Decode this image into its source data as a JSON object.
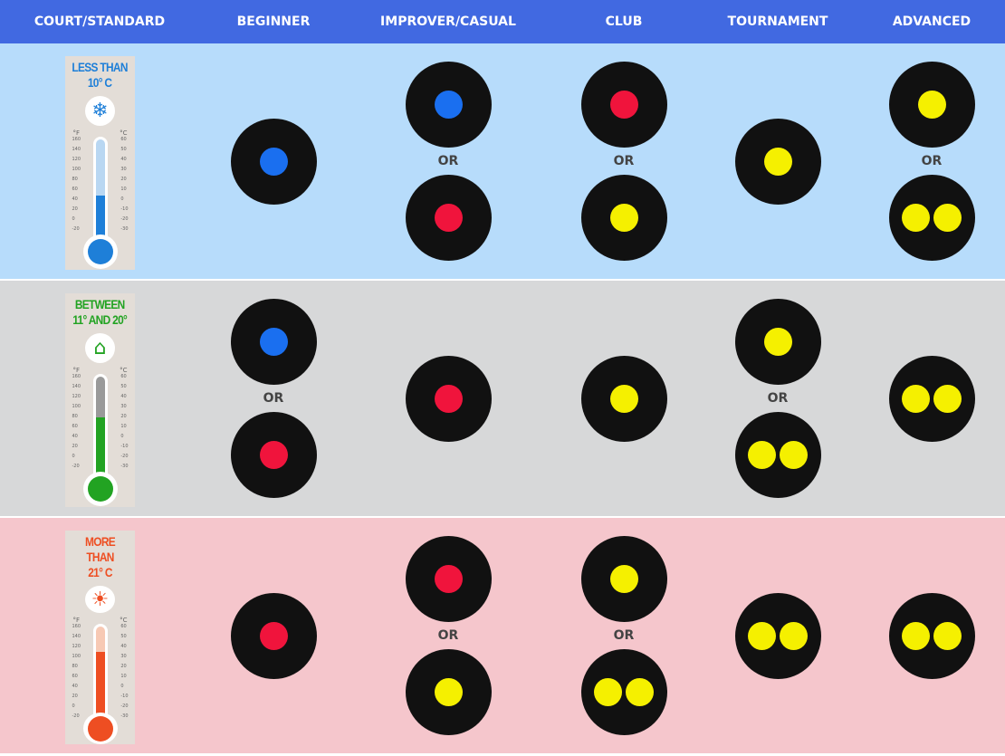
{
  "header": [
    "COURT/STANDARD",
    "BEGINNER",
    "IMPROVER/CASUAL",
    "CLUB",
    "TOURNAMENT",
    "ADVANCED"
  ],
  "or_label": "OR",
  "colors": {
    "blue": "#1a6ff0",
    "red": "#f0143c",
    "yellow": "#f5f000",
    "header": "#4169e1"
  },
  "scale": {
    "f_unit": "°F",
    "c_unit": "°C",
    "f": [
      "160",
      "140",
      "120",
      "100",
      "80",
      "60",
      "40",
      "20",
      "0",
      "-20"
    ],
    "c": [
      "60",
      "50",
      "40",
      "30",
      "20",
      "10",
      "0",
      "-10",
      "-20",
      "-30"
    ]
  },
  "rows": [
    {
      "label_line1": "LESS THAN",
      "label_line2": "10° C",
      "icon": "snowflake-icon",
      "icon_glyph": "❄",
      "bg": "#b7dcfb",
      "accent": "#1e7fd8",
      "tube": "#b9d7f2",
      "fill_level": 0.45,
      "cells": [
        [
          [
            "blue"
          ]
        ],
        [
          [
            "blue"
          ],
          [
            "red"
          ]
        ],
        [
          [
            "red"
          ],
          [
            "yellow"
          ]
        ],
        [
          [
            "yellow"
          ]
        ],
        [
          [
            "yellow"
          ],
          [
            "yellow",
            "yellow"
          ]
        ]
      ]
    },
    {
      "label_line1": "BETWEEN",
      "label_line2": "11° AND 20°",
      "icon": "house-icon",
      "icon_glyph": "⌂",
      "bg": "#d7d8d9",
      "accent": "#22a322",
      "tube": "#9a9a9a",
      "fill_level": 0.6,
      "cells": [
        [
          [
            "blue"
          ],
          [
            "red"
          ]
        ],
        [
          [
            "red"
          ]
        ],
        [
          [
            "yellow"
          ]
        ],
        [
          [
            "yellow"
          ],
          [
            "yellow",
            "yellow"
          ]
        ],
        [
          [
            "yellow",
            "yellow"
          ]
        ]
      ]
    },
    {
      "label_line1": "MORE THAN",
      "label_line2": "21° C",
      "icon": "sun-icon",
      "icon_glyph": "☀",
      "bg": "#f5c6cc",
      "accent": "#ee4e22",
      "tube": "#f7c9b4",
      "fill_level": 0.75,
      "cells": [
        [
          [
            "red"
          ]
        ],
        [
          [
            "red"
          ],
          [
            "yellow"
          ]
        ],
        [
          [
            "yellow"
          ],
          [
            "yellow",
            "yellow"
          ]
        ],
        [
          [
            "yellow",
            "yellow"
          ]
        ],
        [
          [
            "yellow",
            "yellow"
          ]
        ]
      ]
    }
  ]
}
